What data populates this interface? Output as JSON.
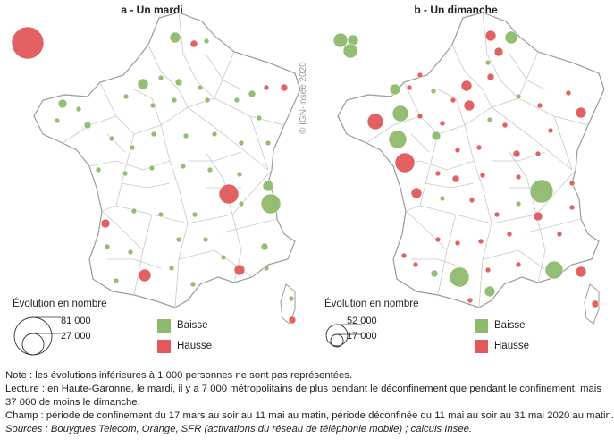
{
  "panels": [
    {
      "title": "a - Un mardi",
      "legend": {
        "title": "Évolution en nombre",
        "max_value": "81 000",
        "mid_value": "27 000",
        "decrease_label": "Baisse",
        "increase_label": "Hausse"
      }
    },
    {
      "title": "b - Un dimanche",
      "legend": {
        "title": "Évolution en nombre",
        "max_value": "52 000",
        "mid_value": "17 000",
        "decrease_label": "Baisse",
        "increase_label": "Hausse"
      }
    }
  ],
  "credit": "© IGN-Insee 2020",
  "notes": {
    "note": "Note : les évolutions inférieures à 1 000 personnes ne sont pas représentées.",
    "lecture": "Lecture : en Haute-Garonne, le mardi, il y a 7 000 métropolitains de plus pendant le déconfinement que pendant le confinement, mais 37 000 de moins le dimanche.",
    "champ": "Champ : période de confinement du 17 mars au soir au 11 mai au matin, période déconfinée du 11 mai au soir au 31 mai 2020 au matin.",
    "sources": "Sources : Bouygues Telecom, Orange, SFR (activations du réseau de téléphonie mobile) ; calculs Insee."
  },
  "colors": {
    "decrease": "#8dbb6c",
    "increase": "#e0585a",
    "border": "#c8c8c8"
  }
}
